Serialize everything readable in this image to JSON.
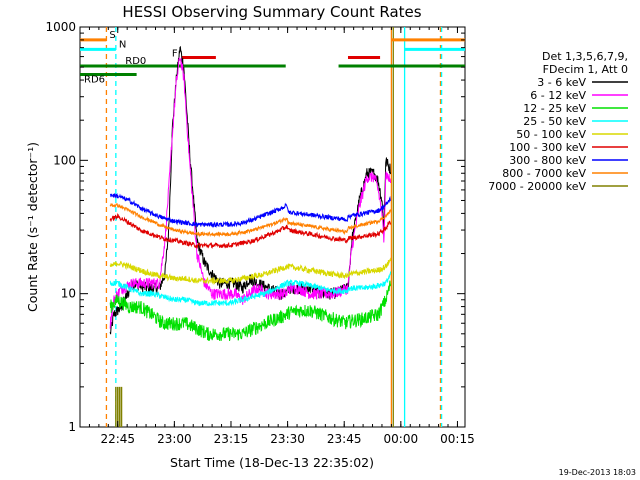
{
  "chart_data": {
    "type": "line",
    "title": "HESSI Observing Summary Count Rates",
    "xlabel": "Start Time (18-Dec-13 22:35:02)",
    "ylabel": "Count Rate (s⁻¹ detector⁻¹)",
    "x_unit": "minutes after 22:35:02",
    "xlim": [
      0,
      102
    ],
    "ylim": [
      1,
      1000
    ],
    "yscale": "log",
    "grid": false,
    "x_ticks": [
      {
        "minute": 10,
        "label": "22:45"
      },
      {
        "minute": 25,
        "label": "23:00"
      },
      {
        "minute": 40,
        "label": "23:15"
      },
      {
        "minute": 55,
        "label": "23:30"
      },
      {
        "minute": 70,
        "label": "23:45"
      },
      {
        "minute": 85,
        "label": "00:00"
      },
      {
        "minute": 100,
        "label": "00:15"
      }
    ],
    "y_ticks": [
      {
        "value": 1,
        "label": "1"
      },
      {
        "value": 10,
        "label": "10"
      },
      {
        "value": 100,
        "label": "100"
      },
      {
        "value": 1000,
        "label": "1000"
      }
    ],
    "legend": {
      "position": "right",
      "header": [
        "Det 1,3,5,6,7,9,",
        "FDecim 1, Att 0"
      ],
      "entries": [
        {
          "label": "3 - 6 keV",
          "color": "#000000"
        },
        {
          "label": "6 - 12 keV",
          "color": "#ff00ff"
        },
        {
          "label": "12 - 25 keV",
          "color": "#00e000"
        },
        {
          "label": "25 - 50 keV",
          "color": "#00ffff"
        },
        {
          "label": "50 - 100 keV",
          "color": "#d8d800"
        },
        {
          "label": "100 - 300 keV",
          "color": "#e00000"
        },
        {
          "label": "300 - 800 keV",
          "color": "#0000ff"
        },
        {
          "label": "800 - 7000 keV",
          "color": "#ff8000"
        },
        {
          "label": "7000 - 20000 keV",
          "color": "#808000"
        }
      ]
    },
    "series": [
      {
        "name": "3 - 6 keV",
        "color": "#000000",
        "noise": 0.1,
        "x": [
          8,
          9,
          11,
          14,
          18,
          21,
          22.5,
          23.5,
          24.5,
          25.5,
          26.5,
          27.5,
          29,
          31,
          33,
          35,
          37,
          39,
          41,
          43,
          45,
          47,
          50,
          53,
          54.9,
          55.1,
          58,
          61,
          64,
          67,
          70.9,
          71.1,
          72,
          74,
          76,
          78,
          79,
          80,
          80.5,
          81,
          82.3
        ],
        "y": [
          5,
          7,
          8,
          12,
          11,
          11,
          14,
          30,
          180,
          400,
          700,
          500,
          120,
          25,
          17,
          14,
          12,
          12,
          12,
          11,
          13,
          12,
          11,
          10,
          10,
          11,
          11,
          11,
          10,
          10,
          11,
          12,
          25,
          50,
          80,
          80,
          70,
          50,
          30,
          100,
          85
        ]
      },
      {
        "name": "6 - 12 keV",
        "color": "#ff00ff",
        "noise": 0.1,
        "x": [
          8,
          9,
          11,
          14,
          18,
          21,
          22.5,
          23.5,
          24.5,
          25.5,
          26.5,
          27.5,
          29,
          31,
          33,
          35,
          37,
          39,
          41,
          43,
          45,
          47,
          50,
          53,
          54.9,
          55.1,
          58,
          61,
          64,
          67,
          70.9,
          71.1,
          72,
          74,
          76,
          78,
          79,
          80,
          80.5,
          81,
          82.3
        ],
        "y": [
          6,
          9,
          11,
          12,
          12,
          12,
          25,
          60,
          160,
          380,
          600,
          420,
          100,
          20,
          12,
          10,
          10,
          10,
          10,
          9,
          10,
          11,
          10,
          10,
          10,
          11,
          11,
          10,
          10,
          10,
          11,
          12,
          22,
          45,
          75,
          75,
          60,
          40,
          25,
          80,
          70
        ]
      },
      {
        "name": "12 - 25 keV",
        "color": "#00e000",
        "noise": 0.12,
        "x": [
          8,
          10,
          13,
          16,
          19,
          22,
          25,
          28,
          31,
          34,
          37,
          40,
          43,
          46,
          49,
          52,
          54.9,
          55.1,
          58,
          61,
          64,
          67,
          70.9,
          71.1,
          75,
          79,
          81,
          82.3
        ],
        "y": [
          8,
          9,
          8,
          8,
          7,
          6,
          6,
          6,
          5.5,
          5,
          5,
          5,
          5,
          5.5,
          6,
          6.5,
          7,
          7.2,
          7.5,
          7.5,
          7,
          6.5,
          6,
          6.2,
          6.5,
          7,
          9,
          12
        ]
      },
      {
        "name": "25 - 50 keV",
        "color": "#00ffff",
        "noise": 0.05,
        "x": [
          8,
          10,
          13,
          16,
          19,
          22,
          25,
          28,
          31,
          34,
          37,
          40,
          43,
          46,
          49,
          52,
          54.9,
          55.1,
          58,
          61,
          64,
          67,
          70.9,
          71.1,
          75,
          79,
          81,
          82.3
        ],
        "y": [
          12,
          12,
          11,
          10,
          10,
          9.5,
          9,
          9,
          8.5,
          8.5,
          8.5,
          8.5,
          9,
          9.5,
          10,
          11,
          12,
          12,
          12,
          11.5,
          11,
          10.5,
          10.5,
          11,
          11,
          11.5,
          12,
          14
        ]
      },
      {
        "name": "50 - 100 keV",
        "color": "#d8d800",
        "noise": 0.05,
        "x": [
          8,
          10,
          13,
          16,
          19,
          22,
          25,
          28,
          31,
          34,
          37,
          40,
          43,
          46,
          49,
          52,
          54.9,
          55.1,
          58,
          61,
          64,
          67,
          70.9,
          71.1,
          75,
          79,
          81,
          82.3
        ],
        "y": [
          16,
          17,
          16,
          15,
          14,
          13.5,
          13,
          13,
          12.5,
          12.5,
          12.5,
          12.5,
          13,
          13.5,
          14,
          15,
          16,
          16,
          15.5,
          15,
          14.5,
          14,
          13.5,
          14,
          14.5,
          15,
          16,
          18
        ]
      },
      {
        "name": "100 - 300 keV",
        "color": "#e00000",
        "noise": 0.04,
        "x": [
          8,
          10,
          13,
          16,
          19,
          22,
          25,
          28,
          31,
          34,
          37,
          40,
          43,
          46,
          49,
          52,
          54.9,
          55.1,
          58,
          61,
          64,
          67,
          70.9,
          71.1,
          75,
          79,
          81,
          82.3
        ],
        "y": [
          36,
          38,
          34,
          30,
          28,
          26,
          25,
          24,
          23,
          23,
          23,
          23,
          24,
          25,
          27,
          29,
          32,
          30,
          29,
          28,
          27,
          26,
          25,
          26,
          27,
          28,
          31,
          35
        ]
      },
      {
        "name": "300 - 800 keV",
        "color": "#0000ff",
        "noise": 0.04,
        "x": [
          8,
          10,
          13,
          16,
          19,
          22,
          25,
          28,
          31,
          34,
          37,
          40,
          43,
          46,
          49,
          52,
          54.9,
          55.1,
          58,
          61,
          64,
          67,
          70.9,
          71.1,
          75,
          79,
          81,
          82.3
        ],
        "y": [
          55,
          54,
          50,
          44,
          40,
          37,
          35,
          34,
          33,
          33,
          33,
          33,
          34,
          36,
          39,
          42,
          46,
          41,
          40,
          39,
          38,
          37,
          36,
          38,
          40,
          42,
          46,
          52
        ]
      },
      {
        "name": "800 - 7000 keV",
        "color": "#ff8000",
        "noise": 0.03,
        "x": [
          8,
          10,
          13,
          16,
          19,
          22,
          25,
          28,
          31,
          34,
          37,
          40,
          43,
          46,
          49,
          52,
          54.9,
          55.1,
          58,
          61,
          64,
          67,
          70.9,
          71.1,
          75,
          79,
          81,
          82.3
        ],
        "y": [
          46,
          46,
          42,
          38,
          35,
          32,
          30,
          29,
          28,
          28,
          28,
          28,
          29,
          30,
          32,
          34,
          37,
          34,
          33,
          32,
          31,
          30,
          29,
          31,
          33,
          35,
          38,
          42
        ]
      },
      {
        "name": "7000 - 20000 keV",
        "color": "#808000",
        "noise": 0,
        "x": [
          9.5,
          9.5,
          10,
          10,
          10.5,
          10.5,
          11,
          11
        ],
        "y": [
          1,
          2,
          1,
          2,
          1,
          2,
          1,
          2
        ]
      }
    ],
    "vertical_lines": [
      {
        "minute": 7,
        "color": "#ff8000",
        "style": "dashed"
      },
      {
        "minute": 9.5,
        "color": "#00ffff",
        "style": "dashed"
      },
      {
        "minute": 82.5,
        "color": "#ff8000",
        "style": "solid"
      },
      {
        "minute": 83,
        "color": "#808000",
        "style": "solid"
      },
      {
        "minute": 86,
        "color": "#00ffff",
        "style": "solid"
      },
      {
        "minute": 95.5,
        "color": "#ff8000",
        "style": "dashed"
      },
      {
        "minute": 95.8,
        "color": "#00ffff",
        "style": "dashed"
      }
    ],
    "flag_bars": [
      {
        "label": "S",
        "color": "#ff8000",
        "y": 800,
        "segments": [
          [
            0,
            7
          ],
          [
            82.5,
            102
          ]
        ]
      },
      {
        "label": "N",
        "color": "#00ffff",
        "y": 680,
        "segments": [
          [
            0,
            9.5
          ],
          [
            86,
            102
          ]
        ]
      },
      {
        "label": "F",
        "color": "#e00000",
        "y": 590,
        "segments": [
          [
            27,
            36
          ],
          [
            71,
            79.5
          ]
        ]
      },
      {
        "label": "RD0",
        "color": "#008000",
        "y": 510,
        "segments": [
          [
            0,
            54.5
          ],
          [
            68.5,
            102
          ]
        ]
      },
      {
        "label": "RD6",
        "color": "#008000",
        "y": 440,
        "segments": [
          [
            0,
            15
          ]
        ]
      }
    ],
    "timestamp": "19-Dec-2013 18:03"
  }
}
